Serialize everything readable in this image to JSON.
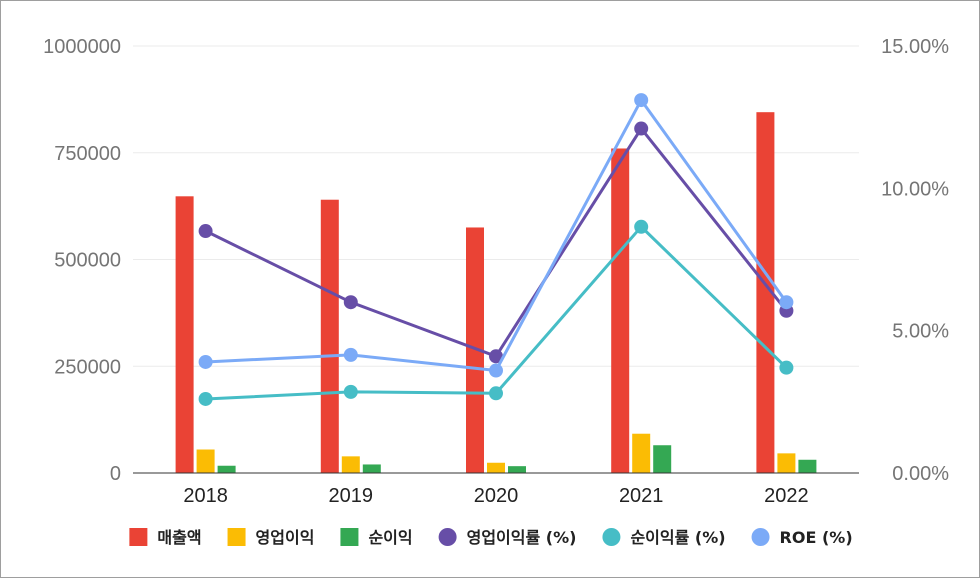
{
  "chart_data": {
    "type": "bar",
    "categories": [
      "2018",
      "2019",
      "2020",
      "2021",
      "2022"
    ],
    "y_left": {
      "ticks": [
        "0",
        "250000",
        "500000",
        "750000",
        "1000000"
      ],
      "ylim": [
        0,
        1000000
      ]
    },
    "y_right": {
      "ticks": [
        "0.00%",
        "5.00%",
        "10.00%",
        "15.00%"
      ],
      "ylim": [
        0,
        15
      ]
    },
    "bar_series": [
      {
        "name": "매출액",
        "color": "#ea4335",
        "values": [
          648000,
          640000,
          575000,
          760000,
          845000
        ]
      },
      {
        "name": "영업이익",
        "color": "#fbbc04",
        "values": [
          55000,
          39000,
          24000,
          92000,
          46000
        ]
      },
      {
        "name": "순이익",
        "color": "#34a853",
        "values": [
          17000,
          20000,
          16000,
          65000,
          31000
        ]
      }
    ],
    "line_series": [
      {
        "name": "영업이익률 (%)",
        "color": "#674ea7",
        "values": [
          8.5,
          6.0,
          4.1,
          12.1,
          5.7
        ]
      },
      {
        "name": "순이익률 (%)",
        "color": "#46bdc6",
        "values": [
          2.6,
          2.85,
          2.8,
          8.65,
          3.7
        ]
      },
      {
        "name": "ROE (%)",
        "color": "#7baaf7",
        "values": [
          3.9,
          4.15,
          3.6,
          13.1,
          6.0
        ]
      }
    ],
    "grid": true,
    "legend_position": "bottom"
  }
}
